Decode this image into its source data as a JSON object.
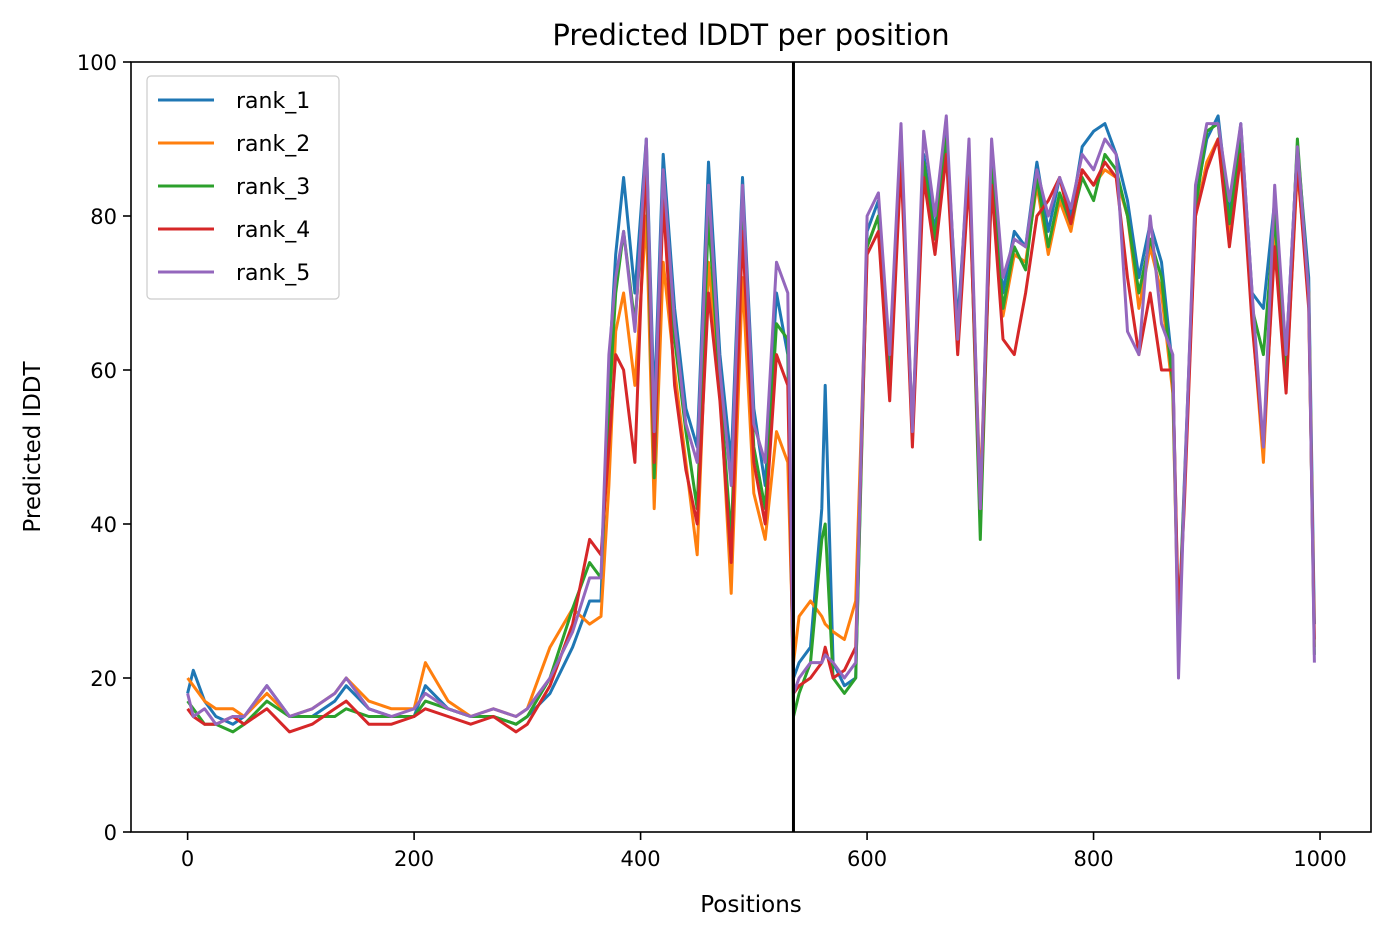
{
  "chart_data": {
    "type": "line",
    "title": "Predicted lDDT per position",
    "xlabel": "Positions",
    "ylabel": "Predicted lDDT",
    "xlim": [
      -50,
      1045
    ],
    "ylim": [
      0,
      100
    ],
    "xticks": [
      0,
      200,
      400,
      600,
      800,
      1000
    ],
    "yticks": [
      0,
      20,
      40,
      60,
      80,
      100
    ],
    "grid": false,
    "legend_position": "top-left",
    "vline_x": 535,
    "series": [
      {
        "name": "rank_1",
        "color": "#1f77b4",
        "x": [
          0,
          5,
          15,
          25,
          40,
          50,
          70,
          90,
          110,
          130,
          140,
          160,
          180,
          200,
          210,
          230,
          250,
          270,
          290,
          300,
          320,
          340,
          355,
          365,
          372,
          378,
          385,
          395,
          405,
          412,
          420,
          430,
          440,
          450,
          460,
          470,
          480,
          490,
          500,
          510,
          520,
          530,
          535,
          540,
          550,
          560,
          563,
          570,
          580,
          590,
          600,
          610,
          620,
          630,
          640,
          650,
          660,
          670,
          680,
          690,
          700,
          710,
          720,
          730,
          740,
          750,
          760,
          770,
          780,
          790,
          800,
          810,
          820,
          830,
          840,
          850,
          860,
          870,
          875,
          880,
          890,
          900,
          910,
          920,
          930,
          940,
          950,
          960,
          970,
          980,
          990,
          995
        ],
        "values": [
          18,
          21,
          17,
          15,
          14,
          15,
          19,
          15,
          15,
          17,
          19,
          16,
          15,
          15,
          19,
          16,
          15,
          15,
          14,
          15,
          18,
          24,
          30,
          30,
          60,
          75,
          85,
          70,
          90,
          55,
          88,
          68,
          55,
          50,
          87,
          62,
          48,
          85,
          55,
          45,
          70,
          62,
          20,
          22,
          24,
          42,
          58,
          22,
          19,
          20,
          78,
          82,
          60,
          90,
          52,
          88,
          78,
          91,
          66,
          88,
          42,
          88,
          70,
          78,
          76,
          87,
          78,
          85,
          80,
          89,
          91,
          92,
          88,
          82,
          72,
          79,
          74,
          60,
          26,
          45,
          82,
          90,
          93,
          80,
          92,
          70,
          68,
          82,
          62,
          89,
          72,
          27
        ],
        "values_note": null
      },
      {
        "name": "rank_2",
        "color": "#ff7f0e",
        "x": [
          0,
          5,
          15,
          25,
          40,
          50,
          70,
          90,
          110,
          130,
          140,
          160,
          180,
          200,
          210,
          230,
          250,
          270,
          290,
          300,
          320,
          340,
          355,
          365,
          372,
          378,
          385,
          395,
          405,
          412,
          420,
          430,
          440,
          450,
          460,
          470,
          480,
          490,
          500,
          510,
          520,
          530,
          535,
          540,
          550,
          560,
          563,
          570,
          580,
          590,
          600,
          610,
          620,
          630,
          640,
          650,
          660,
          670,
          680,
          690,
          700,
          710,
          720,
          730,
          740,
          750,
          760,
          770,
          780,
          790,
          800,
          810,
          820,
          830,
          840,
          850,
          860,
          870,
          875,
          880,
          890,
          900,
          910,
          920,
          930,
          940,
          950,
          960,
          970,
          980,
          990,
          995
        ],
        "values": [
          20,
          19,
          17,
          16,
          16,
          15,
          18,
          15,
          16,
          18,
          20,
          17,
          16,
          16,
          22,
          17,
          15,
          16,
          15,
          16,
          24,
          29,
          27,
          28,
          45,
          65,
          70,
          58,
          80,
          42,
          74,
          60,
          48,
          36,
          74,
          58,
          31,
          72,
          44,
          38,
          52,
          48,
          22,
          28,
          30,
          28,
          27,
          26,
          25,
          30,
          76,
          80,
          57,
          88,
          51,
          86,
          77,
          89,
          63,
          86,
          44,
          85,
          67,
          75,
          74,
          84,
          75,
          82,
          78,
          86,
          84,
          86,
          85,
          80,
          68,
          76,
          70,
          57,
          24,
          44,
          80,
          87,
          90,
          78,
          89,
          67,
          48,
          78,
          58,
          86,
          70,
          24
        ]
      },
      {
        "name": "rank_3",
        "color": "#2ca02c",
        "x": [
          0,
          5,
          15,
          25,
          40,
          50,
          70,
          90,
          110,
          130,
          140,
          160,
          180,
          200,
          210,
          230,
          250,
          270,
          290,
          300,
          320,
          340,
          355,
          365,
          372,
          378,
          385,
          395,
          405,
          412,
          420,
          430,
          440,
          450,
          460,
          470,
          480,
          490,
          500,
          510,
          520,
          530,
          535,
          540,
          550,
          560,
          563,
          570,
          580,
          590,
          600,
          610,
          620,
          630,
          640,
          650,
          660,
          670,
          680,
          690,
          700,
          710,
          720,
          730,
          740,
          750,
          760,
          770,
          780,
          790,
          800,
          810,
          820,
          830,
          840,
          850,
          860,
          870,
          875,
          880,
          890,
          900,
          910,
          920,
          930,
          940,
          950,
          960,
          970,
          980,
          990,
          995
        ],
        "values": [
          17,
          16,
          14,
          14,
          13,
          14,
          17,
          15,
          15,
          15,
          16,
          15,
          15,
          15,
          17,
          16,
          15,
          15,
          14,
          15,
          20,
          29,
          35,
          33,
          55,
          70,
          78,
          66,
          86,
          46,
          84,
          64,
          52,
          42,
          80,
          58,
          38,
          80,
          50,
          42,
          66,
          64,
          15,
          18,
          22,
          38,
          40,
          20,
          18,
          20,
          76,
          80,
          57,
          89,
          52,
          87,
          77,
          90,
          64,
          87,
          38,
          86,
          68,
          76,
          73,
          85,
          76,
          83,
          79,
          85,
          82,
          88,
          86,
          80,
          70,
          77,
          72,
          58,
          25,
          44,
          81,
          91,
          92,
          79,
          90,
          68,
          62,
          80,
          59,
          90,
          70,
          23
        ]
      },
      {
        "name": "rank_4",
        "color": "#d62728",
        "x": [
          0,
          5,
          15,
          25,
          40,
          50,
          70,
          90,
          110,
          130,
          140,
          160,
          180,
          200,
          210,
          230,
          250,
          270,
          290,
          300,
          320,
          340,
          355,
          365,
          372,
          378,
          385,
          395,
          405,
          412,
          420,
          430,
          440,
          450,
          460,
          470,
          480,
          490,
          500,
          510,
          520,
          530,
          535,
          540,
          550,
          560,
          563,
          570,
          580,
          590,
          600,
          610,
          620,
          630,
          640,
          650,
          660,
          670,
          680,
          690,
          700,
          710,
          720,
          730,
          740,
          750,
          760,
          770,
          780,
          790,
          800,
          810,
          820,
          830,
          840,
          850,
          860,
          870,
          875,
          880,
          890,
          900,
          910,
          920,
          930,
          940,
          950,
          960,
          970,
          980,
          990,
          995
        ],
        "values": [
          16,
          15,
          14,
          14,
          15,
          14,
          16,
          13,
          14,
          16,
          17,
          14,
          14,
          15,
          16,
          15,
          14,
          15,
          13,
          14,
          19,
          27,
          38,
          36,
          50,
          62,
          60,
          48,
          88,
          48,
          82,
          58,
          47,
          40,
          70,
          56,
          35,
          78,
          48,
          40,
          62,
          58,
          18,
          19,
          20,
          22,
          24,
          20,
          21,
          24,
          75,
          78,
          56,
          87,
          50,
          85,
          75,
          88,
          62,
          85,
          42,
          84,
          64,
          62,
          70,
          80,
          82,
          85,
          79,
          86,
          84,
          87,
          85,
          72,
          62,
          70,
          60,
          60,
          27,
          42,
          80,
          86,
          90,
          76,
          88,
          66,
          50,
          76,
          57,
          87,
          68,
          25
        ]
      },
      {
        "name": "rank_5",
        "color": "#9467bd",
        "x": [
          0,
          5,
          15,
          25,
          40,
          50,
          70,
          90,
          110,
          130,
          140,
          160,
          180,
          200,
          210,
          230,
          250,
          270,
          290,
          300,
          320,
          340,
          355,
          365,
          372,
          378,
          385,
          395,
          405,
          412,
          420,
          430,
          440,
          450,
          460,
          470,
          480,
          490,
          500,
          510,
          520,
          530,
          535,
          540,
          550,
          560,
          563,
          570,
          580,
          590,
          600,
          610,
          620,
          630,
          640,
          650,
          660,
          670,
          680,
          690,
          700,
          710,
          720,
          730,
          740,
          750,
          760,
          770,
          780,
          790,
          800,
          810,
          820,
          830,
          840,
          850,
          860,
          870,
          875,
          880,
          890,
          900,
          910,
          920,
          930,
          940,
          950,
          960,
          970,
          980,
          990,
          995
        ],
        "values": [
          18,
          15,
          16,
          14,
          15,
          15,
          19,
          15,
          16,
          18,
          20,
          16,
          15,
          16,
          18,
          16,
          15,
          16,
          15,
          16,
          20,
          26,
          33,
          33,
          62,
          72,
          78,
          65,
          90,
          52,
          86,
          66,
          53,
          48,
          84,
          60,
          45,
          84,
          53,
          48,
          74,
          70,
          18,
          20,
          22,
          22,
          23,
          22,
          20,
          22,
          80,
          83,
          62,
          92,
          52,
          91,
          80,
          93,
          64,
          90,
          42,
          90,
          72,
          77,
          76,
          86,
          80,
          85,
          81,
          88,
          86,
          90,
          88,
          65,
          62,
          80,
          66,
          62,
          20,
          44,
          84,
          92,
          92,
          82,
          92,
          70,
          50,
          84,
          62,
          89,
          70,
          22
        ]
      }
    ]
  }
}
